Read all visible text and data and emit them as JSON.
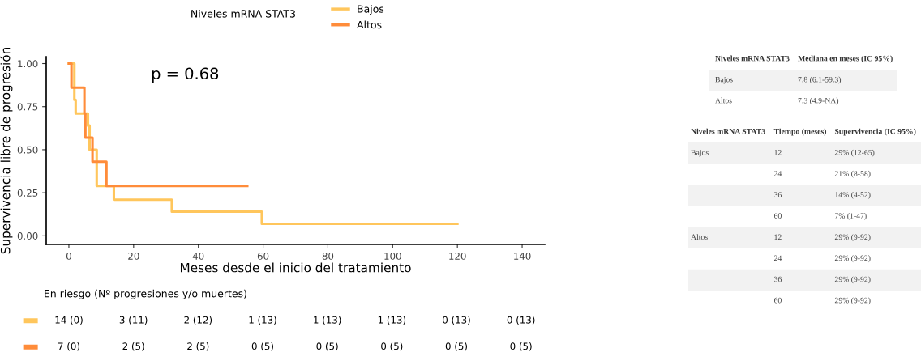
{
  "chart_data": [
    {
      "type": "step",
      "xlabel": "Meses desde el inicio del tratamiento",
      "ylabel": "Supervivencia libre de progresión",
      "legend_title": "Niveles mRNA STAT3",
      "legend": "top",
      "grid": false,
      "xlim": [
        -7,
        147
      ],
      "ylim": [
        -0.05,
        1.04
      ],
      "xticks": [
        0,
        20,
        40,
        60,
        80,
        100,
        120,
        140
      ],
      "yticks": [
        {
          "value": 0,
          "label": "0.00"
        },
        {
          "value": 0.25,
          "label": "0.25"
        },
        {
          "value": 0.5,
          "label": "0.50"
        },
        {
          "value": 0.75,
          "label": "0.75"
        },
        {
          "value": 1,
          "label": "1.00"
        }
      ],
      "annotations": [
        "p = 0.68"
      ],
      "series": [
        {
          "name": "Bajos",
          "color": "#ffc65c",
          "x": [
            0,
            1.7,
            2.1,
            5.9,
            6.4,
            8.6,
            13.9,
            31.8,
            59.6,
            120
          ],
          "values": [
            1,
            0.79,
            0.71,
            0.64,
            0.5,
            0.29,
            0.21,
            0.14,
            0.07,
            0.07
          ]
        },
        {
          "name": "Altos",
          "color": "#ff8c3a",
          "x": [
            0,
            0.8,
            4.8,
            5.1,
            7.3,
            11.6,
            55.1
          ],
          "values": [
            1,
            0.86,
            0.71,
            0.57,
            0.43,
            0.29,
            0.29
          ]
        }
      ]
    },
    {
      "type": "other",
      "title": "En riesgo (Nº progresiones y/o muertes)",
      "colors": [
        "#ffc65c",
        "#ff8c3a"
      ],
      "cell_labels": [
        [
          "14 (0)",
          "3 (11)",
          "2 (12)",
          "1 (13)",
          "1 (13)",
          "1 (13)",
          "0 (13)",
          "0 (13)"
        ],
        [
          "7 (0)",
          "2 (5)",
          "2 (5)",
          "0 (5)",
          "0 (5)",
          "0 (5)",
          "0 (5)",
          "0 (5)"
        ]
      ]
    },
    {
      "type": "other",
      "categories": [
        "Niveles mRNA STAT3",
        "Mediana en meses (IC 95%)"
      ],
      "cell_labels": [
        [
          "Bajos",
          "7.8 (6.1-59.3)"
        ],
        [
          "Altos",
          "7.3 (4.9-NA)"
        ]
      ]
    },
    {
      "type": "other",
      "categories": [
        "Niveles mRNA STAT3",
        "Tiempo (meses)",
        "Supervivencia (IC 95%)"
      ],
      "cell_labels": [
        [
          "Bajos",
          "12",
          "29% (12-65)"
        ],
        [
          null,
          "24",
          "21% (8-58)"
        ],
        [
          null,
          "36",
          "14% (4-52)"
        ],
        [
          null,
          "60",
          "7% (1-47)"
        ],
        [
          "Altos",
          "12",
          "29% (9-92)"
        ],
        [
          null,
          "24",
          "29% (9-92)"
        ],
        [
          null,
          "36",
          "29% (9-92)"
        ],
        [
          null,
          "60",
          "29% (9-92)"
        ]
      ]
    }
  ]
}
